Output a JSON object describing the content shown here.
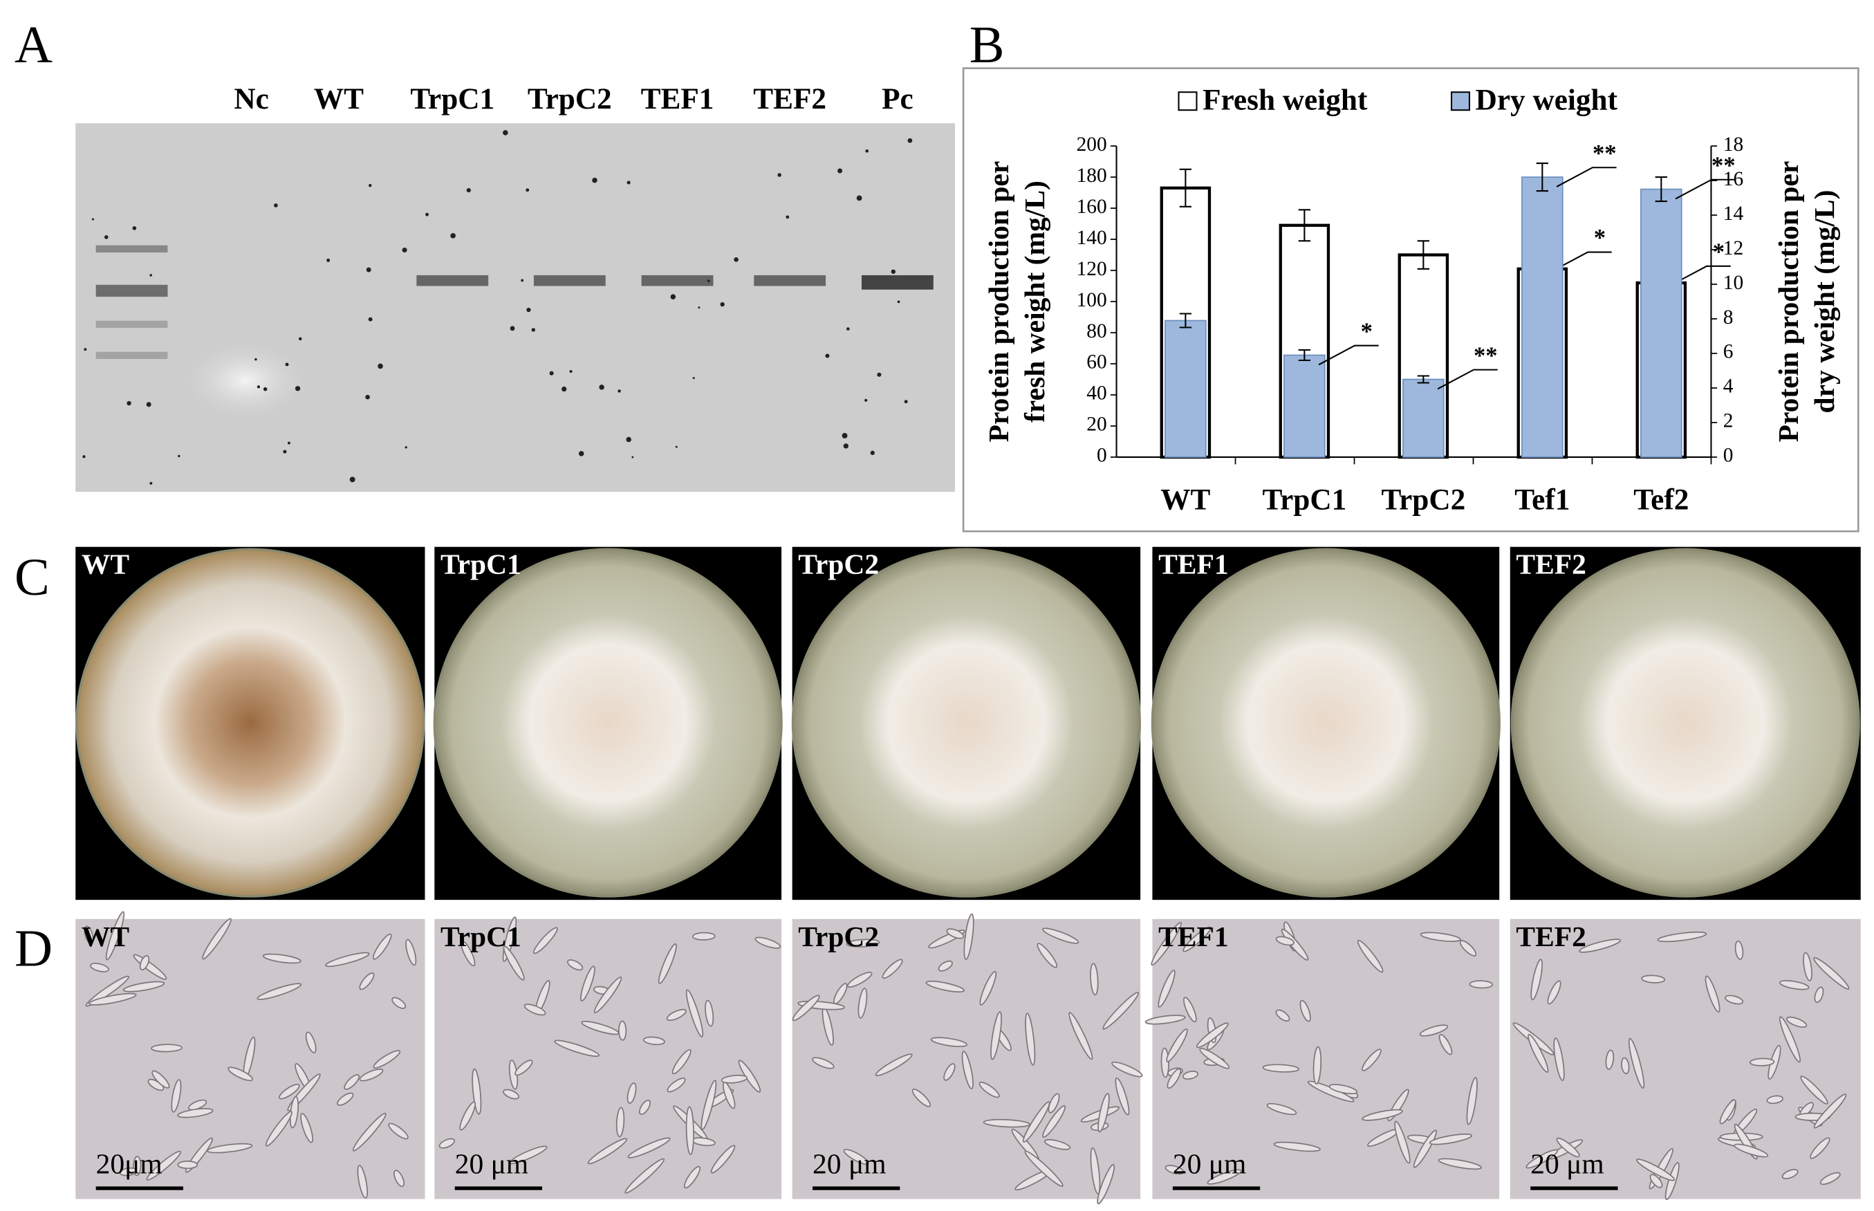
{
  "panels": {
    "a": {
      "label": "A",
      "lanes": [
        "Nc",
        "WT",
        "TrpC1",
        "TrpC2",
        "TEF1",
        "TEF2",
        "Pc"
      ]
    },
    "c": {
      "label": "C",
      "plates": [
        "WT",
        "TrpC1",
        "TrpC2",
        "TEF1",
        "TEF2"
      ]
    },
    "d": {
      "label": "D",
      "images": [
        {
          "label": "WT",
          "scale": "20μm"
        },
        {
          "label": "TrpC1",
          "scale": "20 μm"
        },
        {
          "label": "TrpC2",
          "scale": "20 μm"
        },
        {
          "label": "TEF1",
          "scale": "20 μm"
        },
        {
          "label": "TEF2",
          "scale": "20 μm"
        }
      ]
    }
  },
  "chart_data": {
    "type": "bar",
    "panel_label": "B",
    "categories": [
      "WT",
      "TrpC1",
      "TrpC2",
      "Tef1",
      "Tef2"
    ],
    "ylabel": [
      "Protein production per",
      "fresh weight (mg/L)"
    ],
    "y2label": [
      "Protein production per",
      "dry weight (mg/L)"
    ],
    "ylim": [
      0,
      200
    ],
    "yticks": [
      0,
      20,
      40,
      60,
      80,
      100,
      120,
      140,
      160,
      180,
      200
    ],
    "y2lim": [
      0,
      18
    ],
    "y2ticks": [
      0,
      2,
      4,
      6,
      8,
      10,
      12,
      14,
      16,
      18
    ],
    "series": [
      {
        "name": "Fresh weight",
        "color": "#ffffff",
        "values": [
          173,
          149,
          130,
          121,
          112
        ],
        "errors": [
          12,
          10,
          9,
          9,
          8
        ],
        "significance": [
          null,
          null,
          null,
          "*",
          "*"
        ]
      },
      {
        "name": "Dry weight",
        "color": "#9db8dc",
        "axis": "y2",
        "values": [
          7.9,
          5.9,
          4.5,
          16.2,
          15.5
        ],
        "errors": [
          0.4,
          0.3,
          0.2,
          0.8,
          0.7
        ],
        "significance": [
          null,
          "*",
          "**",
          "**",
          "**"
        ]
      }
    ]
  }
}
